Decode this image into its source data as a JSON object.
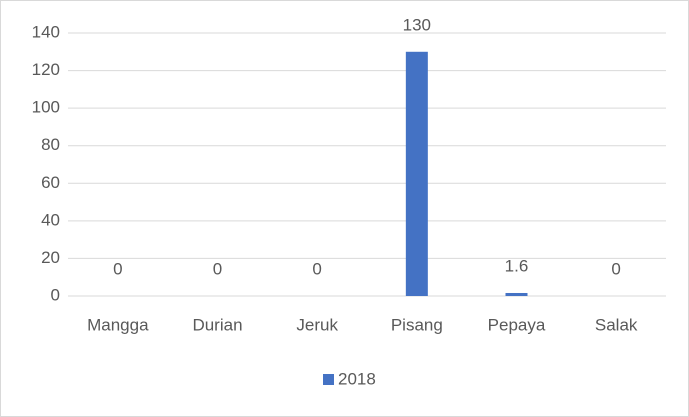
{
  "chart_data": {
    "type": "bar",
    "categories": [
      "Mangga",
      "Durian",
      "Jeruk",
      "Pisang",
      "Pepaya",
      "Salak"
    ],
    "series": [
      {
        "name": "2018",
        "color": "#4472c4",
        "values": [
          0,
          0,
          0,
          130,
          1.6,
          0
        ]
      }
    ],
    "ylim": [
      0,
      140
    ],
    "yticks": [
      0,
      20,
      40,
      60,
      80,
      100,
      120,
      140
    ],
    "grid": true,
    "legend": "bottom",
    "data_labels": true
  }
}
